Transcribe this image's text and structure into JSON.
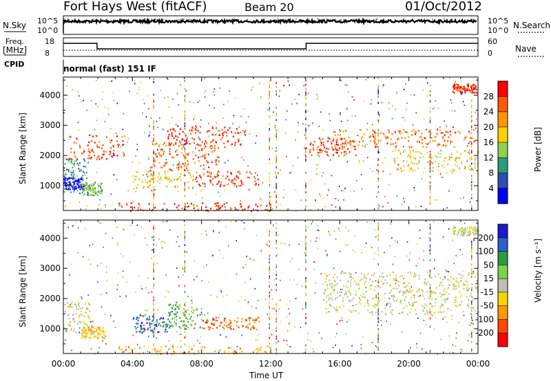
{
  "header": {
    "station": "Fort Hays West (fitACF)",
    "beam": "Beam 20",
    "date": "01/Oct/2012"
  },
  "params": {
    "nsky_label": "N.Sky",
    "nsky_ticks": [
      "10^5",
      "10^0"
    ],
    "nsearch_label": "N.Search",
    "nsearch_ticks": [
      "10^5",
      "10^0"
    ],
    "freq_label": "Freq.",
    "freq_unit": "[MHz]",
    "freq_ticks": [
      "18",
      "8"
    ],
    "nave_label": "Nave",
    "nave_ticks": [
      "60",
      "0"
    ],
    "cpid_label": "CPID",
    "cpid_value": "normal (fast) 151 IF"
  },
  "chart_data": [
    {
      "type": "heatmap",
      "name": "power",
      "ylabel": "Slant Range [km]",
      "yticks": [
        "4000",
        "3000",
        "2000",
        "1000"
      ],
      "yrange_km": [
        180,
        4600
      ],
      "xrange_hours": [
        0,
        24
      ],
      "colorbar": {
        "label": "Power [dB]",
        "ticks": [
          "28",
          "24",
          "20",
          "16",
          "12",
          "8",
          "4"
        ],
        "colors": [
          "#ff0000",
          "#ff5a00",
          "#ff9600",
          "#ffd200",
          "#8fd14f",
          "#2f9b7a",
          "#2c4fb0",
          "#0000ff"
        ]
      },
      "regions": [
        {
          "t": [
            0.0,
            1.4
          ],
          "r": [
            800,
            1900
          ],
          "level": 0.75
        },
        {
          "t": [
            0.0,
            1.2
          ],
          "r": [
            900,
            1300
          ],
          "level": 0.95
        },
        {
          "t": [
            1.0,
            2.2
          ],
          "r": [
            700,
            1100
          ],
          "level": 0.6
        },
        {
          "t": [
            0.3,
            3.5
          ],
          "r": [
            1900,
            2700
          ],
          "level": 0.1
        },
        {
          "t": [
            4.0,
            7.5
          ],
          "r": [
            900,
            1500
          ],
          "level": 0.4
        },
        {
          "t": [
            5.0,
            9.0
          ],
          "r": [
            1500,
            2500
          ],
          "level": 0.15
        },
        {
          "t": [
            7.5,
            11.3
          ],
          "r": [
            1000,
            1500
          ],
          "level": 0.1
        },
        {
          "t": [
            6.0,
            10.5
          ],
          "r": [
            2300,
            3000
          ],
          "level": 0.05
        },
        {
          "t": [
            14.0,
            17.0
          ],
          "r": [
            2000,
            2600
          ],
          "level": 0.1
        },
        {
          "t": [
            15.5,
            24.0
          ],
          "r": [
            2300,
            2900
          ],
          "level": 0.2
        },
        {
          "t": [
            19.0,
            24.0
          ],
          "r": [
            1500,
            2200
          ],
          "level": 0.45
        },
        {
          "t": [
            22.5,
            24.0
          ],
          "r": [
            4100,
            4400
          ],
          "level": 0.05
        },
        {
          "t": [
            3.0,
            12.0
          ],
          "r": [
            180,
            450
          ],
          "level": 0.05
        }
      ]
    },
    {
      "type": "heatmap",
      "name": "velocity",
      "ylabel": "Slant Range [km]",
      "yticks": [
        "4000",
        "3000",
        "2000",
        "1000"
      ],
      "yrange_km": [
        180,
        4600
      ],
      "xrange_hours": [
        0,
        24
      ],
      "xlabel": "Time UT",
      "xticks": [
        "00:00",
        "04:00",
        "08:00",
        "12:00",
        "16:00",
        "20:00",
        "00:00"
      ],
      "colorbar": {
        "label": "Velocity [m s⁻¹]",
        "ticks": [
          "200",
          "100",
          "50",
          "15",
          "-15",
          "-50",
          "-100",
          "-200"
        ],
        "colors": [
          "#1a1acc",
          "#2e5fd0",
          "#2e9a3e",
          "#7cd34a",
          "#bfbfb2",
          "#ffd400",
          "#ff9a00",
          "#ff4800",
          "#ff0000"
        ]
      },
      "regions": [
        {
          "t": [
            0.0,
            1.6
          ],
          "r": [
            900,
            1900
          ],
          "level": 0.55
        },
        {
          "t": [
            1.0,
            2.4
          ],
          "r": [
            700,
            1100
          ],
          "level": 0.65
        },
        {
          "t": [
            4.0,
            6.0
          ],
          "r": [
            900,
            1500
          ],
          "level": 0.15
        },
        {
          "t": [
            6.0,
            8.0
          ],
          "r": [
            1000,
            1900
          ],
          "level": 0.3
        },
        {
          "t": [
            8.0,
            11.3
          ],
          "r": [
            1000,
            1400
          ],
          "level": 0.85
        },
        {
          "t": [
            15.0,
            24.0
          ],
          "r": [
            1500,
            2900
          ],
          "level": 0.52
        },
        {
          "t": [
            3.0,
            12.0
          ],
          "r": [
            180,
            450
          ],
          "level": 0.7
        },
        {
          "t": [
            22.5,
            24.0
          ],
          "r": [
            4100,
            4400
          ],
          "level": 0.52
        }
      ]
    }
  ]
}
